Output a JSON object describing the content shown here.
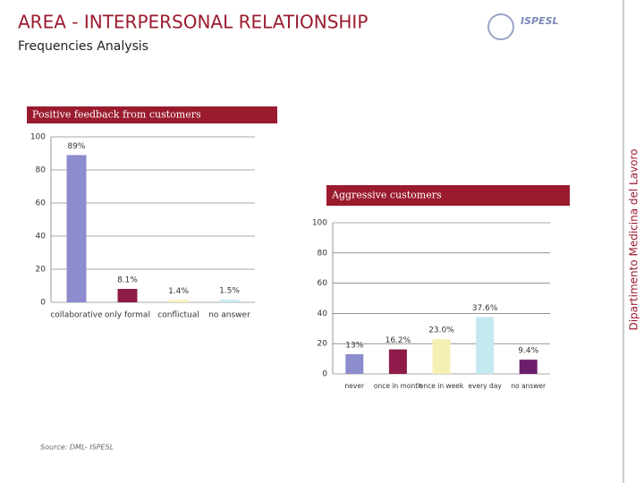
{
  "header": {
    "title": "AREA - INTERPERSONAL RELATIONSHIP",
    "subtitle": "Frequencies Analysis",
    "logo": "ISPESL"
  },
  "side_text": "Dipartimento Medicina del Lavoro",
  "source": "Source: DML- ISPESL",
  "chart_data": [
    {
      "type": "bar",
      "title": "Positive feedback from customers",
      "categories": [
        "collaborative",
        "only formal",
        "conflictual",
        "no answer"
      ],
      "values": [
        89,
        8.1,
        1.4,
        1.5
      ],
      "value_labels": [
        "89%",
        "8.1%",
        "1.4%",
        "1.5%"
      ],
      "colors": [
        "#8c8ccf",
        "#8e1b49",
        "#f6efb4",
        "#c4e9f1"
      ],
      "ylim": [
        0,
        100
      ],
      "yticks": [
        0,
        20,
        40,
        60,
        80,
        100
      ],
      "grid": true
    },
    {
      "type": "bar",
      "title": "Aggressive customers",
      "categories": [
        "never",
        "once in month",
        "once in week",
        "every day",
        "no answer"
      ],
      "values": [
        13,
        16.2,
        23.0,
        37.6,
        9.4
      ],
      "value_labels": [
        "13%",
        "16.2%",
        "23.0%",
        "37.6%",
        "9.4%"
      ],
      "colors": [
        "#8c8ccf",
        "#8e1b49",
        "#f6efb4",
        "#c4e9f1",
        "#6e1f6c"
      ],
      "ylim": [
        0,
        100
      ],
      "yticks": [
        0,
        20,
        40,
        60,
        80,
        100
      ],
      "grid": true
    }
  ]
}
